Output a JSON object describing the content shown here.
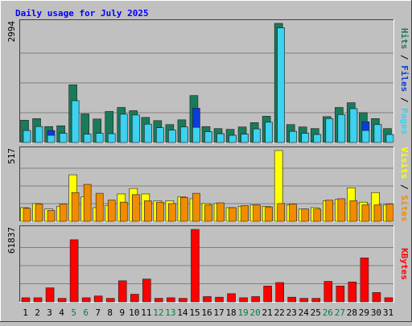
{
  "title": "Daily usage for July 2025",
  "colors": {
    "background": "#c0c0c0",
    "plot_bg": "#c0c0c0",
    "grid": "#808080",
    "title": "#0000ff",
    "hits": "#1a7a5a",
    "files": "#0a3ddc",
    "pages": "#3cd2f0",
    "visits": "#ffff00",
    "sites": "#f08c00",
    "kbytes": "#ff0000",
    "weekend_label": "#008040",
    "weekday_label": "#000000"
  },
  "chart_data": [
    {
      "type": "bar",
      "name": "hits-files-pages",
      "ymax_label": "2994",
      "ylim": [
        0,
        2994
      ],
      "right_label": {
        "parts": [
          {
            "text": "Pages",
            "color": "#3cd2f0"
          },
          {
            "text": " / ",
            "color": "#000000"
          },
          {
            "text": "Files",
            "color": "#0a3ddc"
          },
          {
            "text": " / ",
            "color": "#000000"
          },
          {
            "text": "Hits",
            "color": "#1a7a5a"
          }
        ]
      },
      "categories": [
        "1",
        "2",
        "3",
        "4",
        "5",
        "6",
        "7",
        "8",
        "9",
        "10",
        "11",
        "12",
        "13",
        "14",
        "15",
        "16",
        "17",
        "18",
        "19",
        "20",
        "21",
        "22",
        "23",
        "24",
        "25",
        "26",
        "27",
        "28",
        "29",
        "30",
        "31"
      ],
      "series": [
        {
          "name": "Hits",
          "values": [
            560,
            600,
            400,
            420,
            1450,
            720,
            590,
            780,
            880,
            800,
            630,
            550,
            450,
            570,
            1180,
            400,
            350,
            330,
            390,
            500,
            660,
            2994,
            450,
            390,
            350,
            650,
            880,
            1000,
            750,
            600,
            350
          ]
        },
        {
          "name": "Files",
          "values": [
            300,
            400,
            300,
            230,
            1050,
            210,
            230,
            220,
            710,
            690,
            460,
            370,
            310,
            390,
            860,
            270,
            220,
            180,
            210,
            340,
            510,
            2880,
            280,
            230,
            200,
            600,
            700,
            850,
            520,
            450,
            200
          ]
        },
        {
          "name": "Pages",
          "values": [
            300,
            400,
            180,
            230,
            1050,
            210,
            230,
            220,
            710,
            690,
            460,
            370,
            310,
            390,
            380,
            270,
            220,
            180,
            210,
            340,
            510,
            2880,
            280,
            230,
            200,
            600,
            700,
            850,
            300,
            450,
            200
          ]
        }
      ]
    },
    {
      "type": "bar",
      "name": "visits-sites",
      "ymax_label": "517",
      "ylim": [
        0,
        517
      ],
      "right_label": {
        "parts": [
          {
            "text": "Sites",
            "color": "#f08c00"
          },
          {
            "text": " / ",
            "color": "#000000"
          },
          {
            "text": "Visits",
            "color": "#ffff00"
          }
        ]
      },
      "categories": [
        "1",
        "2",
        "3",
        "4",
        "5",
        "6",
        "7",
        "8",
        "9",
        "10",
        "11",
        "12",
        "13",
        "14",
        "15",
        "16",
        "17",
        "18",
        "19",
        "20",
        "21",
        "22",
        "23",
        "24",
        "25",
        "26",
        "27",
        "28",
        "29",
        "30",
        "31"
      ],
      "series": [
        {
          "name": "Visits",
          "values": [
            100,
            130,
            90,
            110,
            340,
            180,
            100,
            115,
            200,
            240,
            200,
            150,
            150,
            180,
            165,
            130,
            130,
            100,
            110,
            120,
            110,
            517,
            120,
            90,
            100,
            150,
            160,
            245,
            140,
            210,
            120
          ]
        },
        {
          "name": "Sites",
          "values": [
            95,
            125,
            80,
            125,
            210,
            270,
            205,
            155,
            140,
            195,
            150,
            140,
            130,
            175,
            205,
            120,
            135,
            100,
            115,
            120,
            105,
            130,
            125,
            90,
            90,
            155,
            165,
            150,
            120,
            120,
            125
          ]
        }
      ]
    },
    {
      "type": "bar",
      "name": "kbytes",
      "ymax_label": "61837",
      "ylim": [
        0,
        61837
      ],
      "right_label": {
        "parts": [
          {
            "text": "KBytes",
            "color": "#ff0000"
          }
        ]
      },
      "categories": [
        "1",
        "2",
        "3",
        "4",
        "5",
        "6",
        "7",
        "8",
        "9",
        "10",
        "11",
        "12",
        "13",
        "14",
        "15",
        "16",
        "17",
        "18",
        "19",
        "20",
        "21",
        "22",
        "23",
        "24",
        "25",
        "26",
        "27",
        "28",
        "29",
        "30",
        "31"
      ],
      "series": [
        {
          "name": "KBytes",
          "values": [
            3500,
            3500,
            12000,
            3000,
            53000,
            3500,
            5000,
            3000,
            18000,
            6500,
            19500,
            3000,
            3500,
            3000,
            61837,
            4500,
            4000,
            7000,
            3500,
            4500,
            13500,
            16500,
            4000,
            3000,
            3000,
            17500,
            13500,
            17000,
            37500,
            8000,
            3500
          ]
        }
      ]
    }
  ],
  "x_labels": [
    {
      "text": "1",
      "weekend": false
    },
    {
      "text": "2",
      "weekend": false
    },
    {
      "text": "3",
      "weekend": false
    },
    {
      "text": "4",
      "weekend": false
    },
    {
      "text": "5",
      "weekend": true
    },
    {
      "text": "6",
      "weekend": true
    },
    {
      "text": "7",
      "weekend": false
    },
    {
      "text": "8",
      "weekend": false
    },
    {
      "text": "9",
      "weekend": false
    },
    {
      "text": "10",
      "weekend": false
    },
    {
      "text": "11",
      "weekend": false
    },
    {
      "text": "12",
      "weekend": true
    },
    {
      "text": "13",
      "weekend": true
    },
    {
      "text": "14",
      "weekend": false
    },
    {
      "text": "15",
      "weekend": false
    },
    {
      "text": "16",
      "weekend": false
    },
    {
      "text": "17",
      "weekend": false
    },
    {
      "text": "18",
      "weekend": false
    },
    {
      "text": "19",
      "weekend": true
    },
    {
      "text": "20",
      "weekend": true
    },
    {
      "text": "21",
      "weekend": false
    },
    {
      "text": "22",
      "weekend": false
    },
    {
      "text": "23",
      "weekend": false
    },
    {
      "text": "24",
      "weekend": false
    },
    {
      "text": "25",
      "weekend": false
    },
    {
      "text": "26",
      "weekend": true
    },
    {
      "text": "27",
      "weekend": true
    },
    {
      "text": "28",
      "weekend": false
    },
    {
      "text": "29",
      "weekend": false
    },
    {
      "text": "30",
      "weekend": false
    },
    {
      "text": "31",
      "weekend": false
    }
  ]
}
